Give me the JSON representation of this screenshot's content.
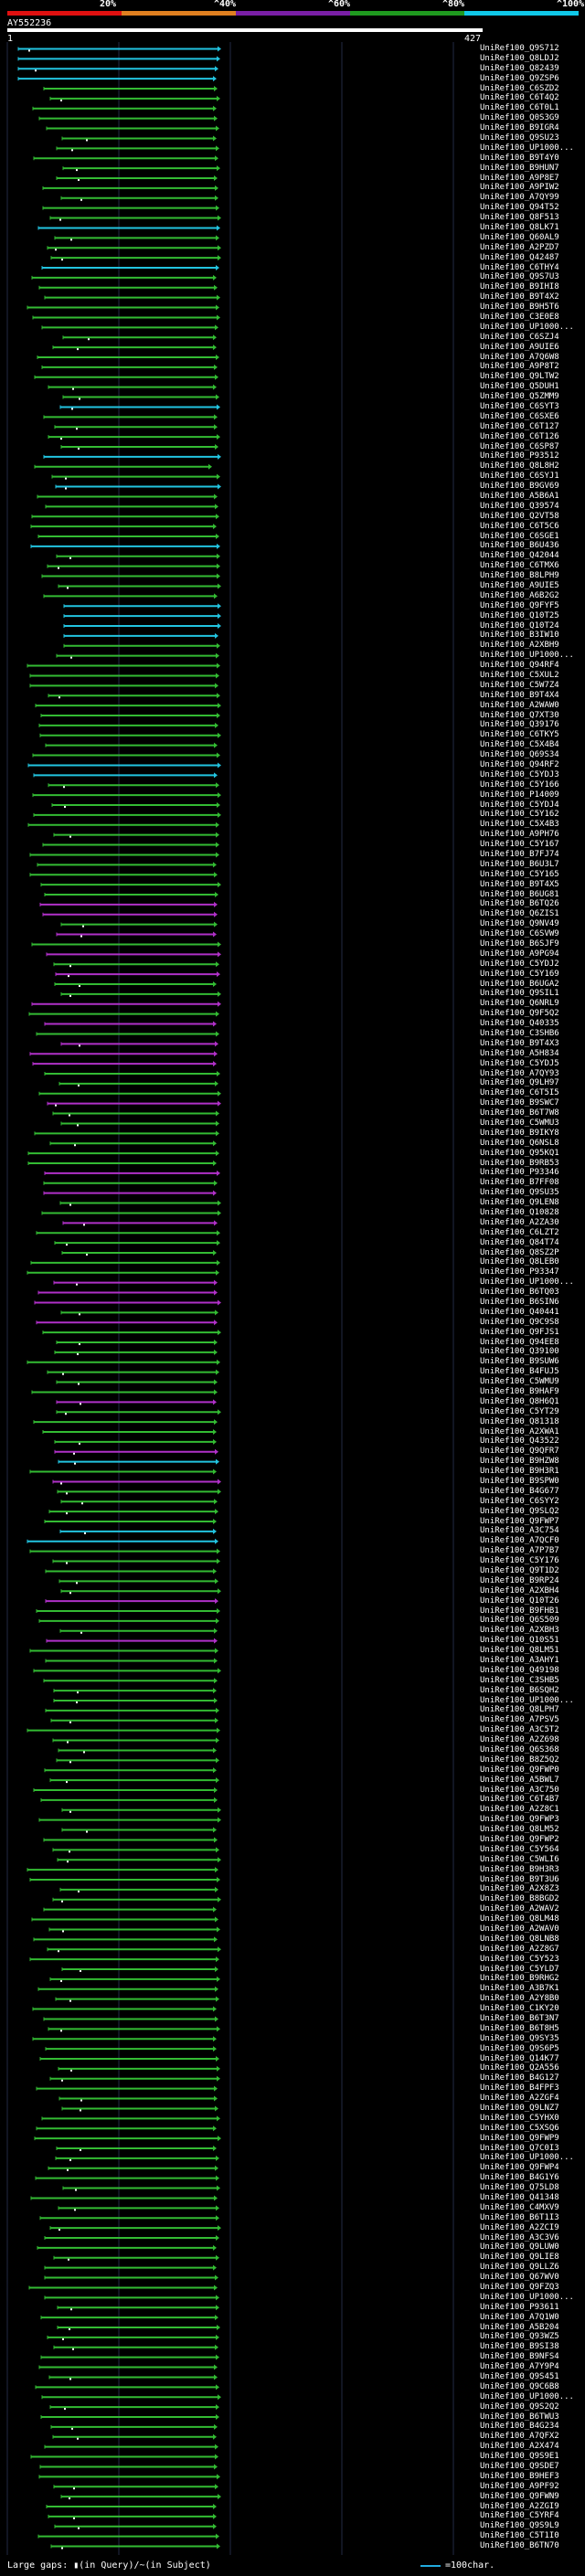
{
  "legend": {
    "segments": [
      {
        "label": "20%",
        "color": "#e01010"
      },
      {
        "label": "^40%",
        "color": "#e08020"
      },
      {
        "label": "^60%",
        "color": "#7a1fa6"
      },
      {
        "label": "^80%",
        "color": "#1f9a1f"
      },
      {
        "label": "^100%",
        "color": "#10c8e8"
      }
    ]
  },
  "query": {
    "id": "AY552236",
    "start": "1",
    "end": "427"
  },
  "footer": {
    "gaps_text": "Large gaps: ▮(in Query)/~(in Subject)",
    "scale_text": "=100char."
  },
  "hits": [
    "UniRef100_Q9S712",
    "UniRef100_Q8LDJ2",
    "UniRef100_Q82439",
    "UniRef100_Q9ZSP6",
    "UniRef100_C6SZD2",
    "UniRef100_C6T4Q2",
    "UniRef100_C6T0L1",
    "UniRef100_Q0S3G9",
    "UniRef100_B9IGR4",
    "UniRef100_Q9SU23",
    "UniRef100_UP1000...",
    "UniRef100_B9T4Y0",
    "UniRef100_B9HUN7",
    "UniRef100_A9P8E7",
    "UniRef100_A9PIW2",
    "UniRef100_A7QY99",
    "UniRef100_Q94T52",
    "UniRef100_Q8F513",
    "UniRef100_Q8LK71",
    "UniRef100_Q60AL9",
    "UniRef100_A2PZD7",
    "UniRef100_Q42487",
    "UniRef100_C6THY4",
    "UniRef100_Q9S7U3",
    "UniRef100_B9IHI8",
    "UniRef100_B9T4X2",
    "UniRef100_B9H5T6",
    "UniRef100_C3E0E8",
    "UniRef100_UP1000...",
    "UniRef100_C6SZJ4",
    "UniRef100_A9UIE6",
    "UniRef100_A7Q6W8",
    "UniRef100_A9P8T2",
    "UniRef100_Q9LTW2",
    "UniRef100_Q5DUH1",
    "UniRef100_Q5ZMM9",
    "UniRef100_C6SYT3",
    "UniRef100_C6SXE6",
    "UniRef100_C6T127",
    "UniRef100_C6T126",
    "UniRef100_C6SP87",
    "UniRef100_P93512",
    "UniRef100_Q8L8H2",
    "UniRef100_C6SYJ1",
    "UniRef100_B9GV69",
    "UniRef100_A5B6A1",
    "UniRef100_Q39574",
    "UniRef100_Q2VT58",
    "UniRef100_C6T5C6",
    "UniRef100_C6SGE1",
    "UniRef100_B6U436",
    "UniRef100_Q42044",
    "UniRef100_C6TMX6",
    "UniRef100_B8LPH9",
    "UniRef100_A9UIE5",
    "UniRef100_A6B2G2",
    "UniRef100_Q9FYF5",
    "UniRef100_Q10T25",
    "UniRef100_Q10T24",
    "UniRef100_B3IW10",
    "UniRef100_A2XBH9",
    "UniRef100_UP1000...",
    "UniRef100_Q94RF4",
    "UniRef100_C5XUL2",
    "UniRef100_C5W7Z4",
    "UniRef100_B9T4X4",
    "UniRef100_A2WAW0",
    "UniRef100_Q7XT30",
    "UniRef100_Q39176",
    "UniRef100_C6TKY5",
    "UniRef100_C5X4B4",
    "UniRef100_Q69S34",
    "UniRef100_Q94RF2",
    "UniRef100_C5YDJ3",
    "UniRef100_C5Y166",
    "UniRef100_P14009",
    "UniRef100_C5YDJ4",
    "UniRef100_C5Y162",
    "UniRef100_C5X4B3",
    "UniRef100_A9PH76",
    "UniRef100_C5Y167",
    "UniRef100_B7FJ74",
    "UniRef100_B6U3L7",
    "UniRef100_C5Y165",
    "UniRef100_B9T4X5",
    "UniRef100_B6UG81",
    "UniRef100_B6TQ26",
    "UniRef100_Q6ZIS1",
    "UniRef100_Q9NV49",
    "UniRef100_C6SVW9",
    "UniRef100_B6SJF9",
    "UniRef100_A9PG94",
    "UniRef100_C5YDJ2",
    "UniRef100_C5Y169",
    "UniRef100_B6UGA2",
    "UniRef100_Q9SIL1",
    "UniRef100_Q6NRL9",
    "UniRef100_Q9F5Q2",
    "UniRef100_Q40335",
    "UniRef100_C3SHB6",
    "UniRef100_B9T4X3",
    "UniRef100_A5H834",
    "UniRef100_C5YDJ5",
    "UniRef100_A7QY93",
    "UniRef100_Q9LH97",
    "UniRef100_C6T5I5",
    "UniRef100_B9SWC7",
    "UniRef100_B6T7W8",
    "UniRef100_C5WMU3",
    "UniRef100_B9IKY8",
    "UniRef100_Q6NSL8",
    "UniRef100_Q95KQ1",
    "UniRef100_B9RB53",
    "UniRef100_P93346",
    "UniRef100_B7FF08",
    "UniRef100_Q9SU35",
    "UniRef100_Q9LEN8",
    "UniRef100_Q10828",
    "UniRef100_A2ZA30",
    "UniRef100_C6LZT2",
    "UniRef100_Q84T74",
    "UniRef100_Q8SZ2P",
    "UniRef100_Q8LEB0",
    "UniRef100_P93347",
    "UniRef100_UP1000...",
    "UniRef100_B6TQ03",
    "UniRef100_B6SIN6",
    "UniRef100_Q40441",
    "UniRef100_Q9C9S8",
    "UniRef100_Q9FJS1",
    "UniRef100_Q94EE8",
    "UniRef100_Q39100",
    "UniRef100_B9SUW6",
    "UniRef100_B4FUJ5",
    "UniRef100_C5WMU9",
    "UniRef100_B9HAF9",
    "UniRef100_Q8H6Q1",
    "UniRef100_C5YT29",
    "UniRef100_Q81318",
    "UniRef100_A2XWA1",
    "UniRef100_Q43522",
    "UniRef100_Q9QFR7",
    "UniRef100_B9HZW8",
    "UniRef100_B9H3R1",
    "UniRef100_B9SPW0",
    "UniRef100_B4G677",
    "UniRef100_C6SYY2",
    "UniRef100_Q9SLQ2",
    "UniRef100_Q9FWP7",
    "UniRef100_A3C754",
    "UniRef100_A7QCF0",
    "UniRef100_A7P7B7",
    "UniRef100_C5Y176",
    "UniRef100_Q9T1D2",
    "UniRef100_B9RP24",
    "UniRef100_A2XBH4",
    "UniRef100_Q10T26",
    "UniRef100_B9FHB1",
    "UniRef100_Q6S509",
    "UniRef100_A2XBH3",
    "UniRef100_Q10S51",
    "UniRef100_Q8LM51",
    "UniRef100_A3AHY1",
    "UniRef100_Q49198",
    "UniRef100_C3SHB5",
    "UniRef100_B6SQH2",
    "UniRef100_UP1000...",
    "UniRef100_Q8LPH7",
    "UniRef100_A7PSV5",
    "UniRef100_A3C5T2",
    "UniRef100_A2Z698",
    "UniRef100_Q6S368",
    "UniRef100_B8Z5Q2",
    "UniRef100_Q9FWP0",
    "UniRef100_A5BWL7",
    "UniRef100_A3C750",
    "UniRef100_C6T4B7",
    "UniRef100_A2Z8C1",
    "UniRef100_Q9FWP3",
    "UniRef100_Q8LM52",
    "UniRef100_Q9FWP2",
    "UniRef100_C5Y564",
    "UniRef100_C5WLI6",
    "UniRef100_B9H3R3",
    "UniRef100_B9T3U6",
    "UniRef100_A2X8Z3",
    "UniRef100_B8BGD2",
    "UniRef100_A2WAV2",
    "UniRef100_Q8LM48",
    "UniRef100_A2WAV0",
    "UniRef100_Q8LNB8",
    "UniRef100_A2Z8G7",
    "UniRef100_C5Y523",
    "UniRef100_C5YLD7",
    "UniRef100_B9RHG2",
    "UniRef100_A3B7K1",
    "UniRef100_A2Y8B0",
    "UniRef100_C1KY20",
    "UniRef100_B6T3N7",
    "UniRef100_B6T8H5",
    "UniRef100_Q9SY35",
    "UniRef100_Q9S6P5",
    "UniRef100_Q14K77",
    "UniRef100_Q2A556",
    "UniRef100_B4G127",
    "UniRef100_B4FPF3",
    "UniRef100_A2ZGF4",
    "UniRef100_Q9LNZ7",
    "UniRef100_C5YHX0",
    "UniRef100_C5XSQ6",
    "UniRef100_Q9FWP9",
    "UniRef100_Q7C0I3",
    "UniRef100_UP1000...",
    "UniRef100_Q9FWP4",
    "UniRef100_B4G1Y6",
    "UniRef100_Q75LD8",
    "UniRef100_Q41348",
    "UniRef100_C4MXV9",
    "UniRef100_B6T1I3",
    "UniRef100_A2ZCI9",
    "UniRef100_A3C3V6",
    "UniRef100_Q9LUW0",
    "UniRef100_Q9LIE8",
    "UniRef100_Q9LLZ6",
    "UniRef100_Q67WV0",
    "UniRef100_Q9FZQ3",
    "UniRef100_UP1000...",
    "UniRef100_P93611",
    "UniRef100_A7Q1W0",
    "UniRef100_A5B204",
    "UniRef100_Q93WZ5",
    "UniRef100_B9SI38",
    "UniRef100_B9NFS4",
    "UniRef100_A7Y9P4",
    "UniRef100_Q9S451",
    "UniRef100_Q9C6B8",
    "UniRef100_UP1000...",
    "UniRef100_Q9S2Q2",
    "UniRef100_B6TWU3",
    "UniRef100_B4G234",
    "UniRef100_A7QFX2",
    "UniRef100_A2X474",
    "UniRef100_Q9S9E1",
    "UniRef100_Q9SDE7",
    "UniRef100_B9HEF3",
    "UniRef100_A9PF92",
    "UniRef100_Q9FWN9",
    "UniRef100_A2ZGI9",
    "UniRef100_C5YRF4",
    "UniRef100_Q9S9L9",
    "UniRef100_C5T1I0",
    "UniRef100_B6TN70"
  ]
}
